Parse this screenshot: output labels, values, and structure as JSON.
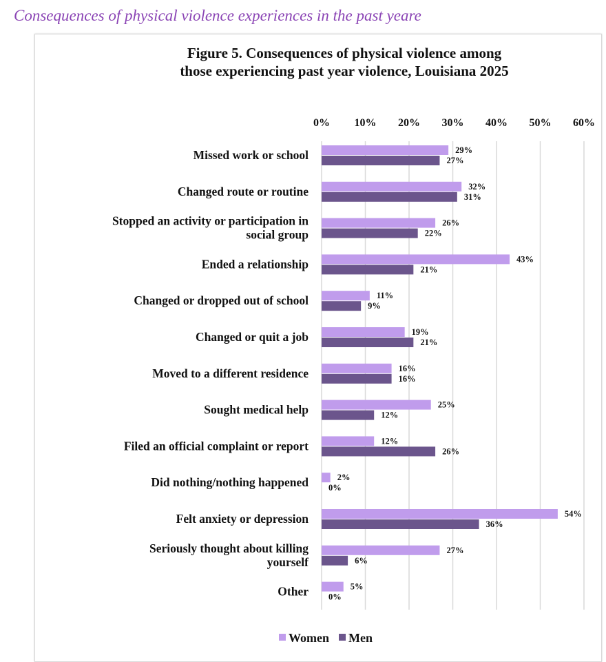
{
  "page_heading": "Consequences of physical violence experiences in the past yeare",
  "chart_data": {
    "type": "bar",
    "orientation": "horizontal",
    "title": "Figure 5. Consequences of physical violence among those experiencing past year violence, Louisiana 2025",
    "title_lines": [
      "Figure 5. Consequences of physical violence among",
      "those experiencing past year violence, Louisiana 2025"
    ],
    "categories": [
      [
        "Missed work or school"
      ],
      [
        "Changed route or routine"
      ],
      [
        "Stopped an activity or participation in",
        "social group"
      ],
      [
        "Ended a relationship"
      ],
      [
        "Changed or dropped out of school"
      ],
      [
        "Changed or quit a job"
      ],
      [
        "Moved to a different residence"
      ],
      [
        "Sought medical help"
      ],
      [
        "Filed an official complaint or report"
      ],
      [
        "Did nothing/nothing happened"
      ],
      [
        "Felt anxiety or depression"
      ],
      [
        "Seriously thought about killing",
        "yourself"
      ],
      [
        "Other"
      ]
    ],
    "series": [
      {
        "name": "Women",
        "color": "#c09cec",
        "values": [
          29,
          32,
          26,
          43,
          11,
          19,
          16,
          25,
          12,
          2,
          54,
          27,
          5
        ]
      },
      {
        "name": "Men",
        "color": "#6b558c",
        "values": [
          27,
          31,
          22,
          21,
          9,
          21,
          16,
          12,
          26,
          0,
          36,
          6,
          0
        ]
      }
    ],
    "xlim": [
      0,
      60
    ],
    "x_ticks": [
      "0%",
      "10%",
      "20%",
      "30%",
      "40%",
      "50%",
      "60%"
    ],
    "x_axis_position": "top",
    "grid": true,
    "legend_position": "bottom",
    "value_suffix": "%"
  }
}
